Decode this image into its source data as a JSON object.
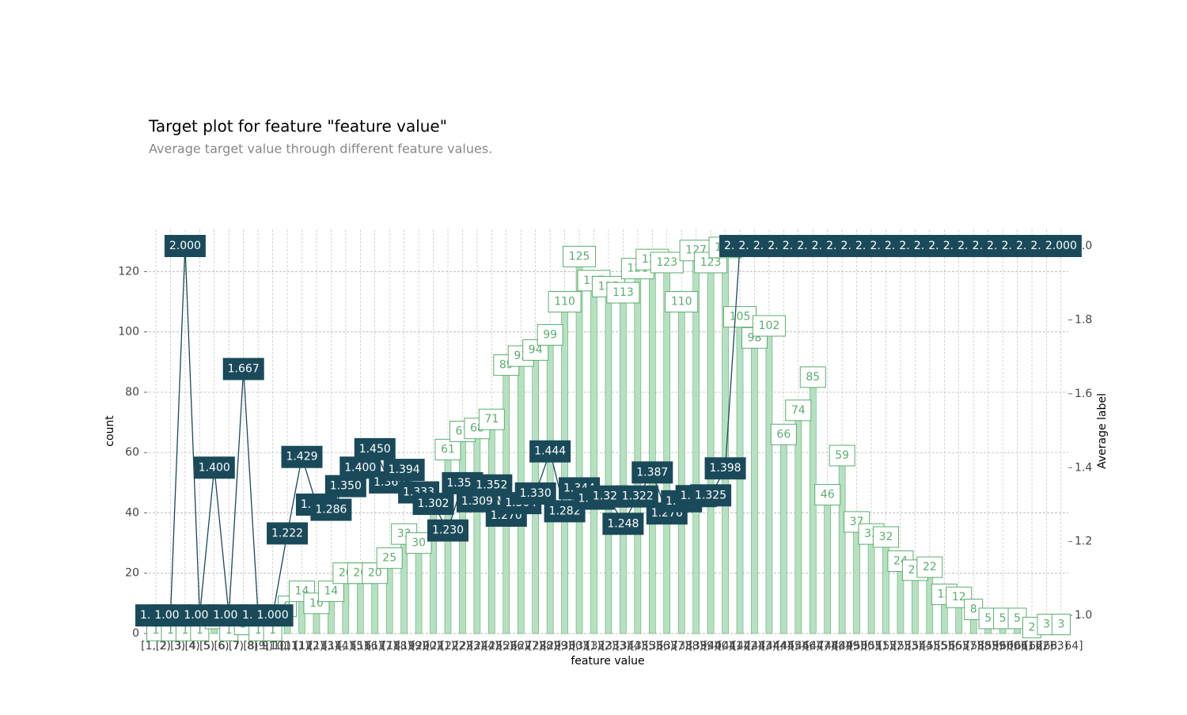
{
  "chart_data": {
    "type": "bar",
    "title": "Target plot for feature \"feature value\"",
    "subtitle": "Average target value through different feature values.",
    "xlabel": "feature value",
    "ylabel": "count",
    "y2label": "Average label",
    "categories": [
      "[1, 2)",
      "[2, 3)",
      "[3, 4)",
      "[4, 5)",
      "[5, 6)",
      "[6, 7)",
      "[7, 8)",
      "[8, 9)",
      "[9, 10)",
      "[10, 11)",
      "[11, 12)",
      "[12, 13)",
      "[13, 14)",
      "[14, 15)",
      "[15, 16)",
      "[16, 17)",
      "[17, 18)",
      "[18, 19)",
      "[19, 20)",
      "[20, 21)",
      "[21, 22)",
      "[22, 23)",
      "[23, 24)",
      "[24, 25)",
      "[25, 26)",
      "[26, 27)",
      "[27, 28)",
      "[28, 29)",
      "[29, 30)",
      "[30, 31)",
      "[31, 32)",
      "[32, 33)",
      "[33, 34)",
      "[34, 35)",
      "[35, 36)",
      "[36, 37)",
      "[37, 38)",
      "[38, 39)",
      "[39, 40)",
      "[40, 41)",
      "[41, 42)",
      "[42, 43)",
      "[43, 44)",
      "[44, 45)",
      "[45, 46)",
      "[46, 47)",
      "[47, 48)",
      "[48, 49)",
      "[49, 50)",
      "[50, 51)",
      "[51, 52)",
      "[52, 53)",
      "[53, 54)",
      "[54, 55)",
      "[55, 56)",
      "[56, 57)",
      "[57, 58)",
      "[58, 59)",
      "[59, 60)",
      "[60, 61)",
      "[61, 62)",
      "[62, 63)",
      "[63, 64]"
    ],
    "series": [
      {
        "type": "bar",
        "color": "#5aae6e",
        "fill": "#b7e0c2",
        "values": [
          1,
          1,
          1,
          1,
          5,
          1,
          3,
          1,
          1,
          9,
          14,
          10,
          14,
          20,
          20,
          20,
          25,
          33,
          30,
          43,
          61,
          67,
          68,
          71,
          89,
          92,
          94,
          99,
          110,
          125,
          117,
          115,
          113,
          121,
          124,
          123,
          110,
          127,
          123,
          128,
          105,
          98,
          102,
          66,
          74,
          85,
          46,
          59,
          37,
          33,
          32,
          24,
          21,
          22,
          13,
          12,
          8,
          5,
          5,
          5,
          2,
          3,
          3
        ]
      },
      {
        "type": "line",
        "axis": "y2",
        "color": "#1a4a5a",
        "values": [
          1,
          1,
          2,
          1,
          1.4,
          1,
          1.667,
          1,
          1,
          1.222,
          1.429,
          1.3,
          1.286,
          1.35,
          1.4,
          1.45,
          1.36,
          1.394,
          1.333,
          1.302,
          1.23,
          1.358,
          1.309,
          1.352,
          1.27,
          1.304,
          1.33,
          1.444,
          1.282,
          1.344,
          1.316,
          1.322,
          1.248,
          1.322,
          1.387,
          1.276,
          1.309,
          1.323,
          1.325,
          1.398,
          2,
          2,
          2,
          2,
          2,
          2,
          2,
          2,
          2,
          2,
          2,
          2,
          2,
          2,
          2,
          2,
          2,
          2,
          2,
          2,
          2,
          2,
          2
        ],
        "value_labels": [
          "1.000",
          "1.000",
          "2.000",
          "1.000",
          "1.400",
          "1.000",
          "1.667",
          "1.000",
          "1.000",
          "1.222",
          "1.429",
          "1.300",
          "1.286",
          "1.350",
          "1.400",
          "1.450",
          "1.360",
          "1.394",
          "1.333",
          "1.302",
          "1.230",
          "1.358",
          "1.309",
          "1.352",
          "1.270",
          "1.304",
          "1.330",
          "1.444",
          "1.282",
          "1.344",
          "1.316",
          "1.322",
          "1.248",
          "1.322",
          "1.387",
          "1.276",
          "1.309",
          "1.323",
          "1.325",
          "1.398",
          "2.000",
          "2.000",
          "2.000",
          "2.000",
          "2.000",
          "2.000",
          "2.000",
          "2.000",
          "2.000",
          "2.000",
          "2.000",
          "2.000",
          "2.000",
          "2.000",
          "2.000",
          "2.000",
          "2.000",
          "2.000",
          "2.000",
          "2.000",
          "2.000",
          "2.000",
          "2.000"
        ]
      }
    ],
    "ylim": [
      0,
      134
    ],
    "yticks": [
      0,
      20,
      40,
      60,
      80,
      100,
      120
    ],
    "y2lim": [
      0.951,
      2.045
    ],
    "y2ticks": [
      {
        "value": 1,
        "label": "1.0"
      },
      {
        "value": 1.2,
        "label": "1.2"
      },
      {
        "value": 1.4,
        "label": "1.4"
      },
      {
        "value": 1.6,
        "label": "1.6"
      },
      {
        "value": 1.8,
        "label": "1.8"
      },
      {
        "value": 2,
        "label": "2.0"
      }
    ],
    "grid": true
  }
}
